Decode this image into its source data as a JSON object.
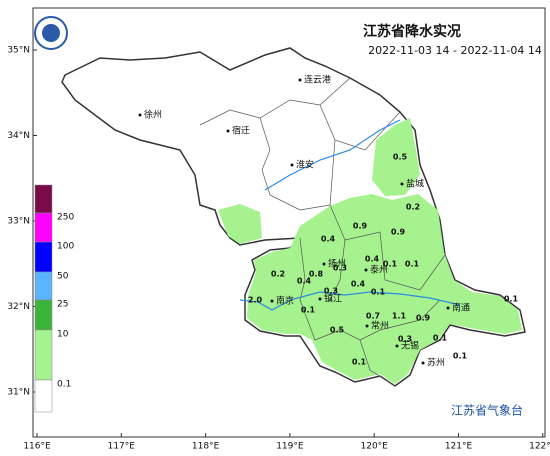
{
  "header": {
    "title": "江苏省降水实况",
    "period": "2022-11-03 14 - 2022-11-04 14"
  },
  "axes": {
    "lon_labels": [
      "116°E",
      "117°E",
      "118°E",
      "119°E",
      "120°E",
      "121°E",
      "122°E"
    ],
    "lat_labels": [
      "35°N",
      "34°N",
      "33°N",
      "32°N",
      "31°N"
    ]
  },
  "legend": {
    "labels": [
      "250",
      "100",
      "50",
      "25",
      "10",
      "0.1"
    ],
    "colors": [
      "#7a0a4a",
      "#ff00ff",
      "#0000ff",
      "#5ab4ff",
      "#3cb43c",
      "#a6f28f",
      "#ffffff"
    ]
  },
  "cities": [
    "连云港",
    "徐州",
    "宿迁",
    "淮安",
    "盐城",
    "扬州",
    "泰州",
    "南京",
    "镇江",
    "南通",
    "常州",
    "无锡",
    "苏州"
  ],
  "stations": [
    "0.5",
    "0.2",
    "0.9",
    "0.9",
    "0.4",
    "0.4",
    "0.1",
    "0.2",
    "0.4",
    "0.8",
    "0.3",
    "0.4",
    "0.1",
    "0.1",
    "2.0",
    "0.3",
    "0.1",
    "0.7",
    "1.1",
    "0.9",
    "0.5",
    "0.3",
    "0.1",
    "0.1",
    "0.1",
    "0.1"
  ],
  "footer": "江苏省气象台"
}
